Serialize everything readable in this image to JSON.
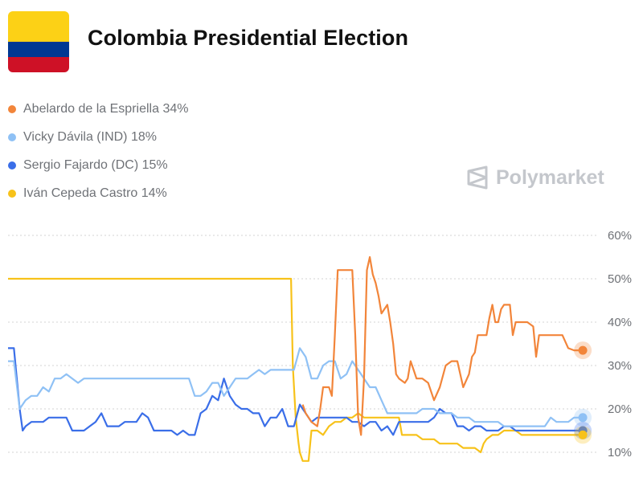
{
  "header": {
    "title": "Colombia Presidential Election",
    "flag_colors": [
      "#FCD116",
      "#003893",
      "#CE1126"
    ]
  },
  "brand": {
    "name": "Polymarket",
    "icon": "polymarket-logo-icon",
    "color": "#c4c7cc"
  },
  "legend": [
    {
      "label": "Abelardo de la Espriella 34%",
      "color": "#f2853a"
    },
    {
      "label": "Vicky Dávila (IND) 18%",
      "color": "#8fc1f5"
    },
    {
      "label": "Sergio Fajardo (DC) 15%",
      "color": "#3a6ee8"
    },
    {
      "label": "Iván Cepeda Castro 14%",
      "color": "#f7c21a"
    }
  ],
  "chart_data": {
    "type": "line",
    "y_tick_labels": [
      "10%",
      "20%",
      "30%",
      "40%",
      "50%",
      "60%"
    ],
    "ylim": [
      10,
      60
    ],
    "y_axis_position": "right",
    "grid": "horizontal-dotted",
    "xlim": [
      0,
      100
    ],
    "series": [
      {
        "name": "Abelardo de la Espriella",
        "color": "#f2853a",
        "end_marker": true,
        "points": [
          [
            50.5,
            21
          ],
          [
            51,
            19
          ],
          [
            52,
            17
          ],
          [
            53,
            16
          ],
          [
            53.5,
            20
          ],
          [
            54,
            25
          ],
          [
            55,
            25
          ],
          [
            55.5,
            23
          ],
          [
            56,
            37
          ],
          [
            56.5,
            52
          ],
          [
            57,
            52
          ],
          [
            58,
            52
          ],
          [
            59,
            52
          ],
          [
            59.5,
            37
          ],
          [
            60,
            18
          ],
          [
            60.5,
            14
          ],
          [
            61,
            27
          ],
          [
            61.5,
            52
          ],
          [
            62,
            55
          ],
          [
            62.5,
            51
          ],
          [
            63,
            49
          ],
          [
            63.5,
            46
          ],
          [
            64,
            42
          ],
          [
            64.5,
            43
          ],
          [
            65,
            44
          ],
          [
            65.5,
            40
          ],
          [
            66,
            35
          ],
          [
            66.5,
            28
          ],
          [
            67,
            27
          ],
          [
            68,
            26
          ],
          [
            68.5,
            27
          ],
          [
            69,
            31
          ],
          [
            69.5,
            29
          ],
          [
            70,
            27
          ],
          [
            71,
            27
          ],
          [
            72,
            26
          ],
          [
            73,
            22
          ],
          [
            74,
            25
          ],
          [
            75,
            30
          ],
          [
            76,
            31
          ],
          [
            77,
            31
          ],
          [
            78,
            25
          ],
          [
            79,
            28
          ],
          [
            79.5,
            32
          ],
          [
            80,
            33
          ],
          [
            80.5,
            37
          ],
          [
            81,
            37
          ],
          [
            82,
            37
          ],
          [
            82.5,
            41
          ],
          [
            83,
            44
          ],
          [
            83.5,
            40
          ],
          [
            84,
            40
          ],
          [
            84.5,
            43
          ],
          [
            85,
            44
          ],
          [
            86,
            44
          ],
          [
            86.5,
            37
          ],
          [
            87,
            40
          ],
          [
            88,
            40
          ],
          [
            89,
            40
          ],
          [
            90,
            39
          ],
          [
            90.5,
            32
          ],
          [
            91,
            37
          ],
          [
            92,
            37
          ],
          [
            93,
            37
          ],
          [
            94,
            37
          ],
          [
            95,
            37
          ],
          [
            96,
            34
          ],
          [
            97,
            33.5
          ],
          [
            98.5,
            33.5
          ]
        ]
      },
      {
        "name": "Vicky Dávila (IND)",
        "color": "#8fc1f5",
        "end_marker": true,
        "points": [
          [
            0,
            31
          ],
          [
            1,
            31
          ],
          [
            2,
            20
          ],
          [
            3,
            22
          ],
          [
            4,
            23
          ],
          [
            5,
            23
          ],
          [
            6,
            25
          ],
          [
            7,
            24
          ],
          [
            8,
            27
          ],
          [
            9,
            27
          ],
          [
            10,
            28
          ],
          [
            11,
            27
          ],
          [
            12,
            26
          ],
          [
            13,
            27
          ],
          [
            14,
            27
          ],
          [
            15,
            27
          ],
          [
            16,
            27
          ],
          [
            17,
            27
          ],
          [
            18,
            27
          ],
          [
            19,
            27
          ],
          [
            20,
            27
          ],
          [
            21,
            27
          ],
          [
            22,
            27
          ],
          [
            23,
            27
          ],
          [
            24,
            27
          ],
          [
            25,
            27
          ],
          [
            26,
            27
          ],
          [
            27,
            27
          ],
          [
            28,
            27
          ],
          [
            29,
            27
          ],
          [
            30,
            27
          ],
          [
            31,
            27
          ],
          [
            32,
            23
          ],
          [
            33,
            23
          ],
          [
            34,
            24
          ],
          [
            35,
            26
          ],
          [
            36,
            26
          ],
          [
            37,
            23
          ],
          [
            38,
            25
          ],
          [
            39,
            27
          ],
          [
            40,
            27
          ],
          [
            41,
            27
          ],
          [
            42,
            28
          ],
          [
            43,
            29
          ],
          [
            44,
            28
          ],
          [
            45,
            29
          ],
          [
            46,
            29
          ],
          [
            47,
            29
          ],
          [
            48,
            29
          ],
          [
            49,
            29
          ],
          [
            50,
            34
          ],
          [
            51,
            32
          ],
          [
            52,
            27
          ],
          [
            53,
            27
          ],
          [
            54,
            30
          ],
          [
            55,
            31
          ],
          [
            56,
            31
          ],
          [
            57,
            27
          ],
          [
            58,
            28
          ],
          [
            59,
            31
          ],
          [
            60,
            29
          ],
          [
            61,
            27
          ],
          [
            62,
            25
          ],
          [
            63,
            25
          ],
          [
            64,
            22
          ],
          [
            65,
            19
          ],
          [
            66,
            19
          ],
          [
            67,
            19
          ],
          [
            68,
            19
          ],
          [
            69,
            19
          ],
          [
            70,
            19
          ],
          [
            71,
            20
          ],
          [
            72,
            20
          ],
          [
            73,
            20
          ],
          [
            74,
            19
          ],
          [
            75,
            19
          ],
          [
            76,
            19
          ],
          [
            77,
            18
          ],
          [
            78,
            18
          ],
          [
            79,
            18
          ],
          [
            80,
            17
          ],
          [
            81,
            17
          ],
          [
            82,
            17
          ],
          [
            83,
            17
          ],
          [
            84,
            17
          ],
          [
            85,
            16
          ],
          [
            86,
            16
          ],
          [
            87,
            16
          ],
          [
            88,
            16
          ],
          [
            89,
            16
          ],
          [
            90,
            16
          ],
          [
            91,
            16
          ],
          [
            92,
            16
          ],
          [
            93,
            18
          ],
          [
            94,
            17
          ],
          [
            95,
            17
          ],
          [
            96,
            17
          ],
          [
            97,
            18
          ],
          [
            98.5,
            18
          ]
        ]
      },
      {
        "name": "Sergio Fajardo (DC)",
        "color": "#3a6ee8",
        "end_marker": true,
        "points": [
          [
            0,
            34
          ],
          [
            1,
            34
          ],
          [
            2,
            20
          ],
          [
            2.5,
            15
          ],
          [
            3,
            16
          ],
          [
            4,
            17
          ],
          [
            5,
            17
          ],
          [
            6,
            17
          ],
          [
            7,
            18
          ],
          [
            8,
            18
          ],
          [
            9,
            18
          ],
          [
            10,
            18
          ],
          [
            11,
            15
          ],
          [
            12,
            15
          ],
          [
            13,
            15
          ],
          [
            14,
            16
          ],
          [
            15,
            17
          ],
          [
            16,
            19
          ],
          [
            17,
            16
          ],
          [
            18,
            16
          ],
          [
            19,
            16
          ],
          [
            20,
            17
          ],
          [
            21,
            17
          ],
          [
            22,
            17
          ],
          [
            23,
            19
          ],
          [
            24,
            18
          ],
          [
            25,
            15
          ],
          [
            26,
            15
          ],
          [
            27,
            15
          ],
          [
            28,
            15
          ],
          [
            29,
            14
          ],
          [
            30,
            15
          ],
          [
            31,
            14
          ],
          [
            32,
            14
          ],
          [
            33,
            19
          ],
          [
            34,
            20
          ],
          [
            35,
            23
          ],
          [
            36,
            22
          ],
          [
            37,
            27
          ],
          [
            38,
            23
          ],
          [
            39,
            21
          ],
          [
            40,
            20
          ],
          [
            41,
            20
          ],
          [
            42,
            19
          ],
          [
            43,
            19
          ],
          [
            44,
            16
          ],
          [
            45,
            18
          ],
          [
            46,
            18
          ],
          [
            47,
            20
          ],
          [
            48,
            16
          ],
          [
            49,
            16
          ],
          [
            50,
            21
          ],
          [
            51,
            19
          ],
          [
            52,
            17
          ],
          [
            53,
            18
          ],
          [
            54,
            18
          ],
          [
            55,
            18
          ],
          [
            56,
            18
          ],
          [
            57,
            18
          ],
          [
            58,
            18
          ],
          [
            59,
            17
          ],
          [
            60,
            17
          ],
          [
            61,
            16
          ],
          [
            62,
            17
          ],
          [
            63,
            17
          ],
          [
            64,
            15
          ],
          [
            65,
            16
          ],
          [
            66,
            14
          ],
          [
            67,
            17
          ],
          [
            68,
            17
          ],
          [
            69,
            17
          ],
          [
            70,
            17
          ],
          [
            71,
            17
          ],
          [
            72,
            17
          ],
          [
            73,
            18
          ],
          [
            74,
            20
          ],
          [
            75,
            19
          ],
          [
            76,
            19
          ],
          [
            77,
            16
          ],
          [
            78,
            16
          ],
          [
            79,
            15
          ],
          [
            80,
            16
          ],
          [
            81,
            16
          ],
          [
            82,
            15
          ],
          [
            83,
            15
          ],
          [
            84,
            15
          ],
          [
            85,
            16
          ],
          [
            86,
            16
          ],
          [
            87,
            15
          ],
          [
            88,
            15
          ],
          [
            89,
            15
          ],
          [
            90,
            15
          ],
          [
            91,
            15
          ],
          [
            92,
            15
          ],
          [
            93,
            15
          ],
          [
            94,
            15
          ],
          [
            95,
            15
          ],
          [
            96,
            15
          ],
          [
            97,
            15
          ],
          [
            98.5,
            15
          ]
        ]
      },
      {
        "name": "Iván Cepeda Castro",
        "color": "#f7c21a",
        "end_marker": true,
        "points": [
          [
            0,
            50
          ],
          [
            48.5,
            50
          ],
          [
            48.8,
            30
          ],
          [
            49.3,
            18
          ],
          [
            49.8,
            12
          ],
          [
            50,
            10
          ],
          [
            50.5,
            8
          ],
          [
            51.5,
            8
          ],
          [
            52,
            15
          ],
          [
            53,
            15
          ],
          [
            54,
            14
          ],
          [
            55,
            16
          ],
          [
            56,
            17
          ],
          [
            57,
            17
          ],
          [
            58,
            18
          ],
          [
            59,
            18
          ],
          [
            60,
            19
          ],
          [
            61,
            18
          ],
          [
            62,
            18
          ],
          [
            63,
            18
          ],
          [
            64,
            18
          ],
          [
            65,
            18
          ],
          [
            66,
            18
          ],
          [
            67,
            18
          ],
          [
            67.5,
            14
          ],
          [
            68,
            14
          ],
          [
            69,
            14
          ],
          [
            70,
            14
          ],
          [
            71,
            13
          ],
          [
            72,
            13
          ],
          [
            73,
            13
          ],
          [
            74,
            12
          ],
          [
            75,
            12
          ],
          [
            76,
            12
          ],
          [
            77,
            12
          ],
          [
            78,
            11
          ],
          [
            79,
            11
          ],
          [
            80,
            11
          ],
          [
            81,
            10
          ],
          [
            81.5,
            12
          ],
          [
            82,
            13
          ],
          [
            83,
            14
          ],
          [
            84,
            14
          ],
          [
            85,
            15
          ],
          [
            86,
            15
          ],
          [
            87,
            15
          ],
          [
            88,
            14
          ],
          [
            89,
            14
          ],
          [
            90,
            14
          ],
          [
            91,
            14
          ],
          [
            92,
            14
          ],
          [
            93,
            14
          ],
          [
            94,
            14
          ],
          [
            95,
            14
          ],
          [
            96,
            14
          ],
          [
            97,
            14
          ],
          [
            98.5,
            14
          ]
        ]
      }
    ]
  }
}
